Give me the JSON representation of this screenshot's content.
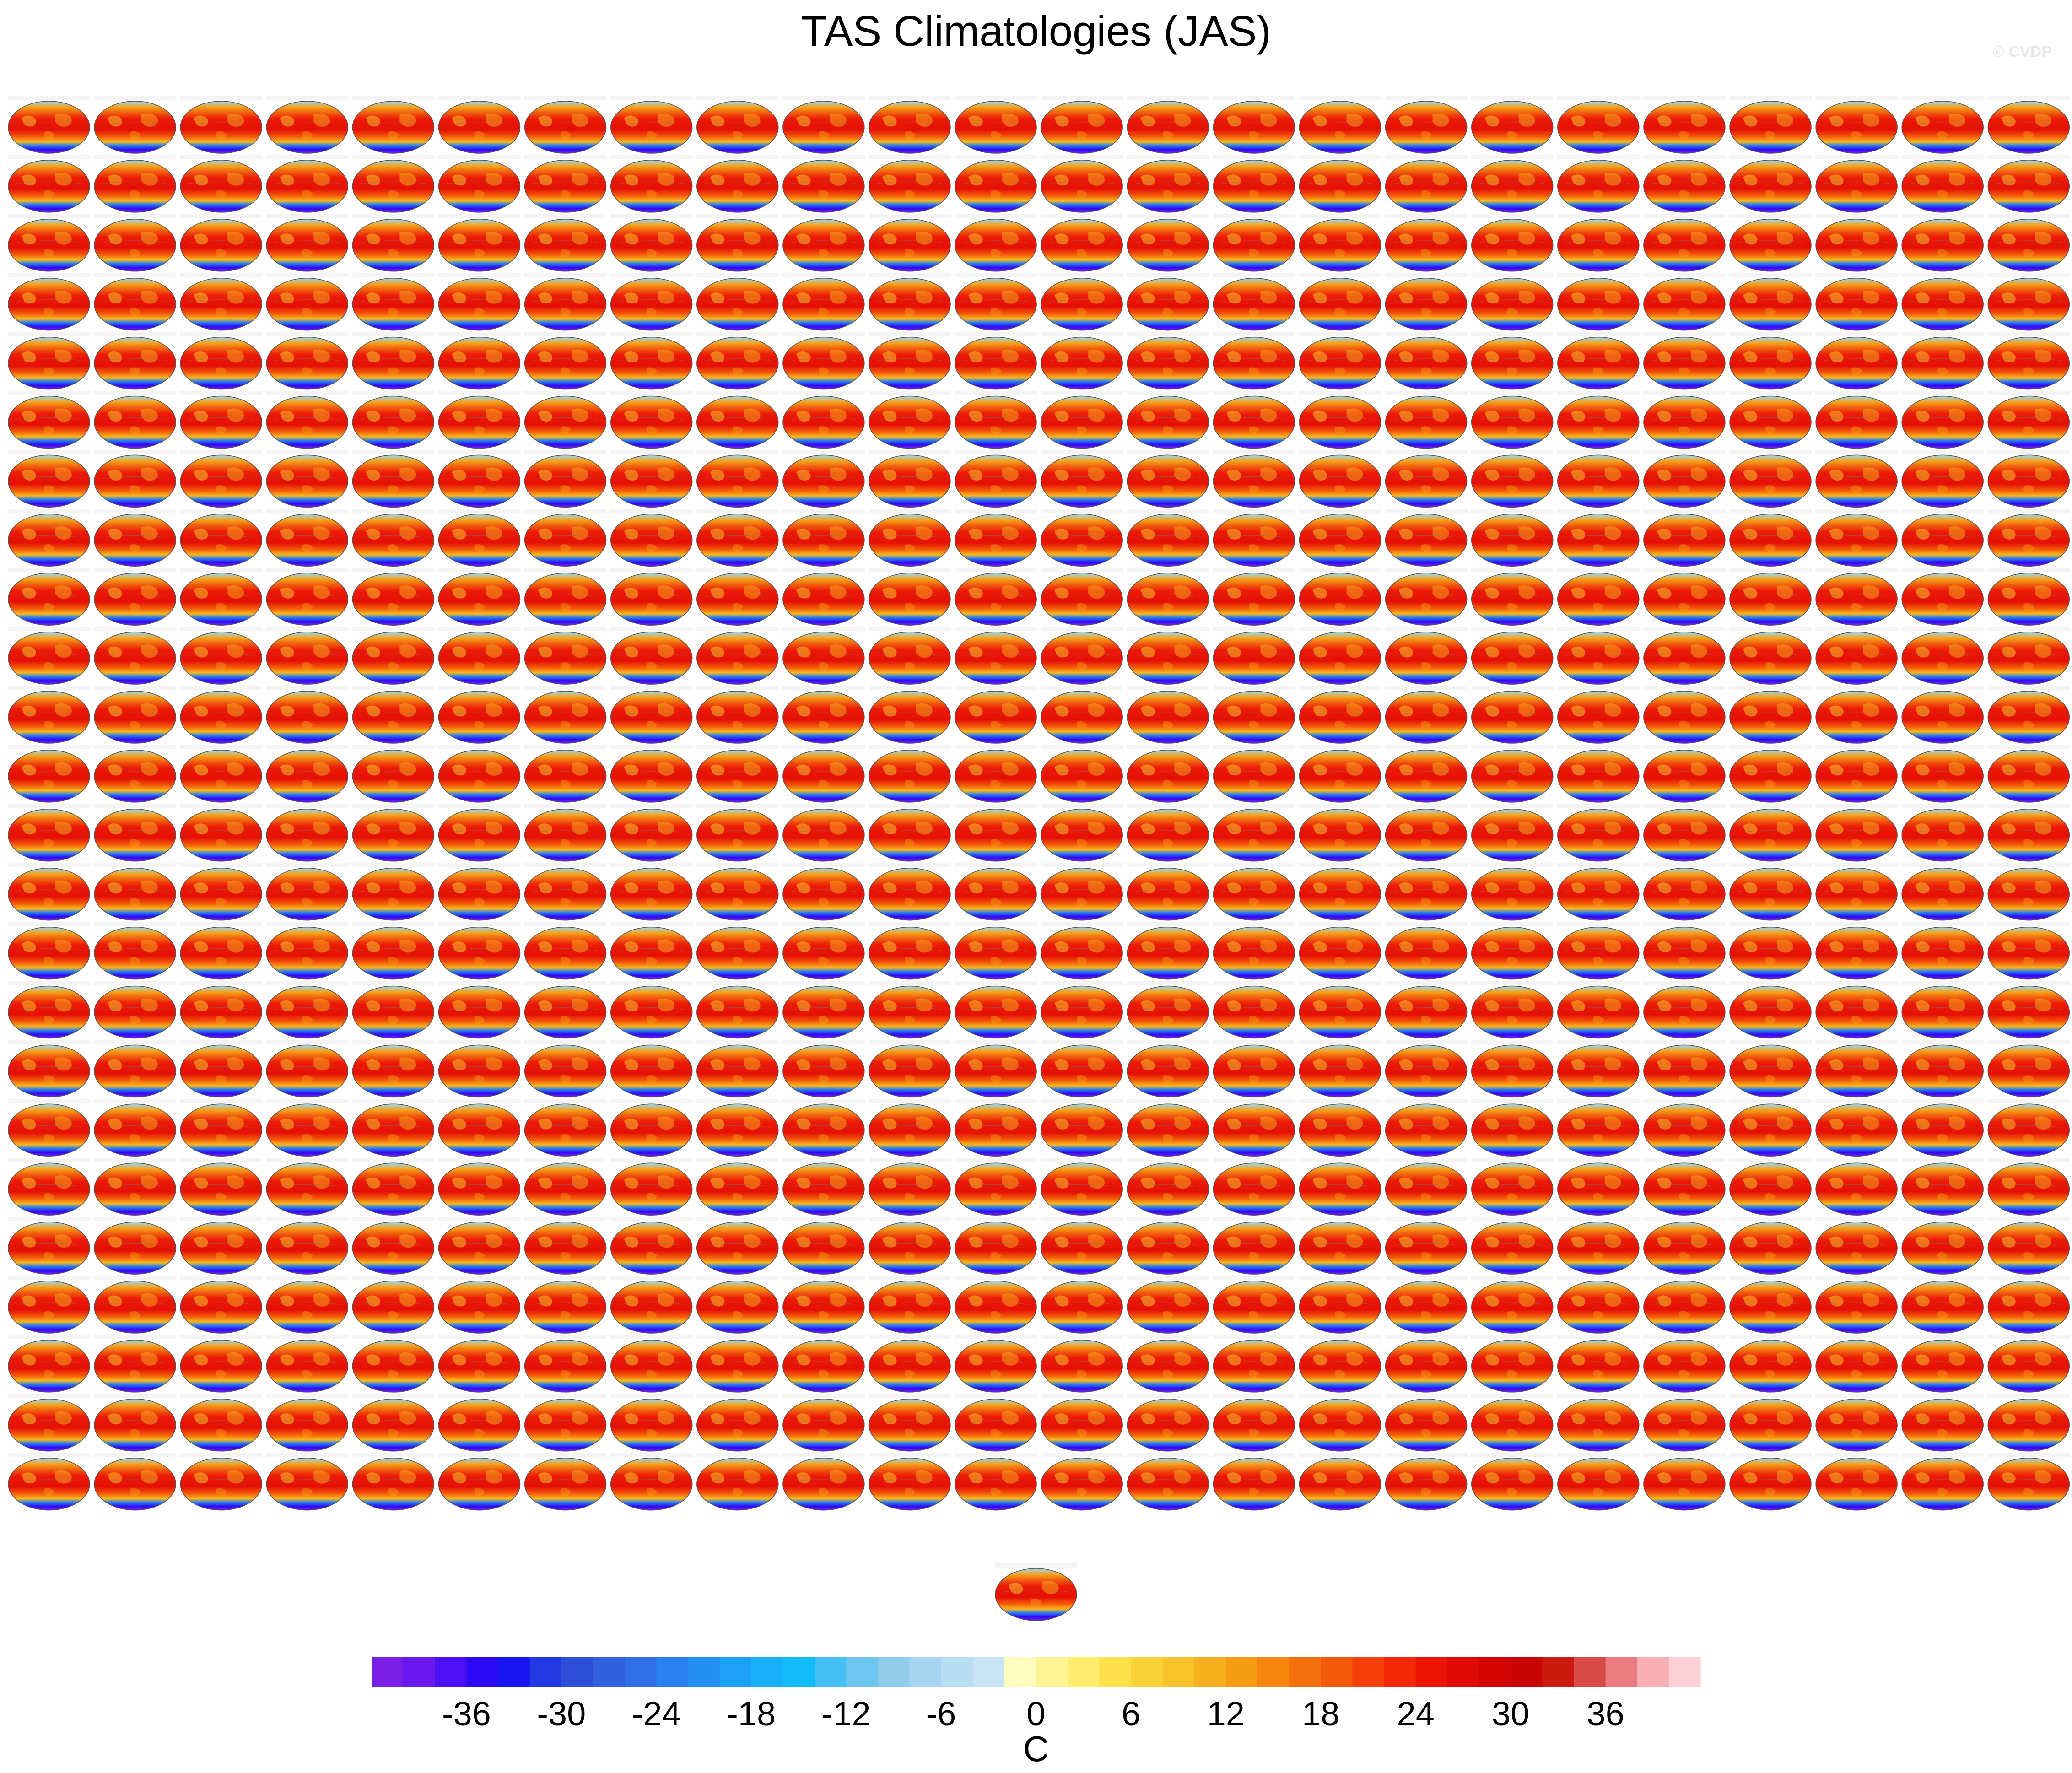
{
  "figure": {
    "title": "TAS Climatologies (JAS)",
    "watermark": "© CVDP"
  },
  "chart_data": {
    "type": "heatmap",
    "title": "TAS Climatologies (JAS)",
    "description_of_panels": "small-multiple global maps of seasonal mean surface air temperature",
    "panel_layout": {
      "rows": 24,
      "cols": 24,
      "extra_panels_bottom_center": 1,
      "total_panels": 577
    },
    "colorbar": {
      "unit": "C",
      "orientation": "horizontal",
      "tick_labels": [
        "-36",
        "-30",
        "-24",
        "-18",
        "-12",
        "-6",
        "0",
        "6",
        "12",
        "18",
        "24",
        "30",
        "36"
      ],
      "tick_values": [
        -36,
        -30,
        -24,
        -18,
        -12,
        -6,
        0,
        6,
        12,
        18,
        24,
        30,
        36
      ],
      "level_min": -42,
      "level_max": 42,
      "level_step": 2,
      "colors": [
        "#7a20e6",
        "#6a18f0",
        "#4c10f4",
        "#2c0af8",
        "#1a14f2",
        "#2438e2",
        "#2e4ed8",
        "#3060dc",
        "#2e6ee6",
        "#2a80ee",
        "#2490f2",
        "#1ea0f6",
        "#18b0f8",
        "#12bcfa",
        "#46c0f4",
        "#6ec6ee",
        "#90cce8",
        "#a6d4ee",
        "#b8dcf2",
        "#c8e4f6",
        "#fffcc0",
        "#fff494",
        "#ffec6e",
        "#fde04a",
        "#fad23a",
        "#f8c22a",
        "#f8b01e",
        "#f69c14",
        "#f6860e",
        "#f4700c",
        "#f45a0a",
        "#f44008",
        "#f42a06",
        "#ec1404",
        "#e00a04",
        "#d40404",
        "#c80404",
        "#cc1a10",
        "#d84a48",
        "#ec7c80",
        "#f8b0b4",
        "#fcd0d4"
      ]
    }
  }
}
